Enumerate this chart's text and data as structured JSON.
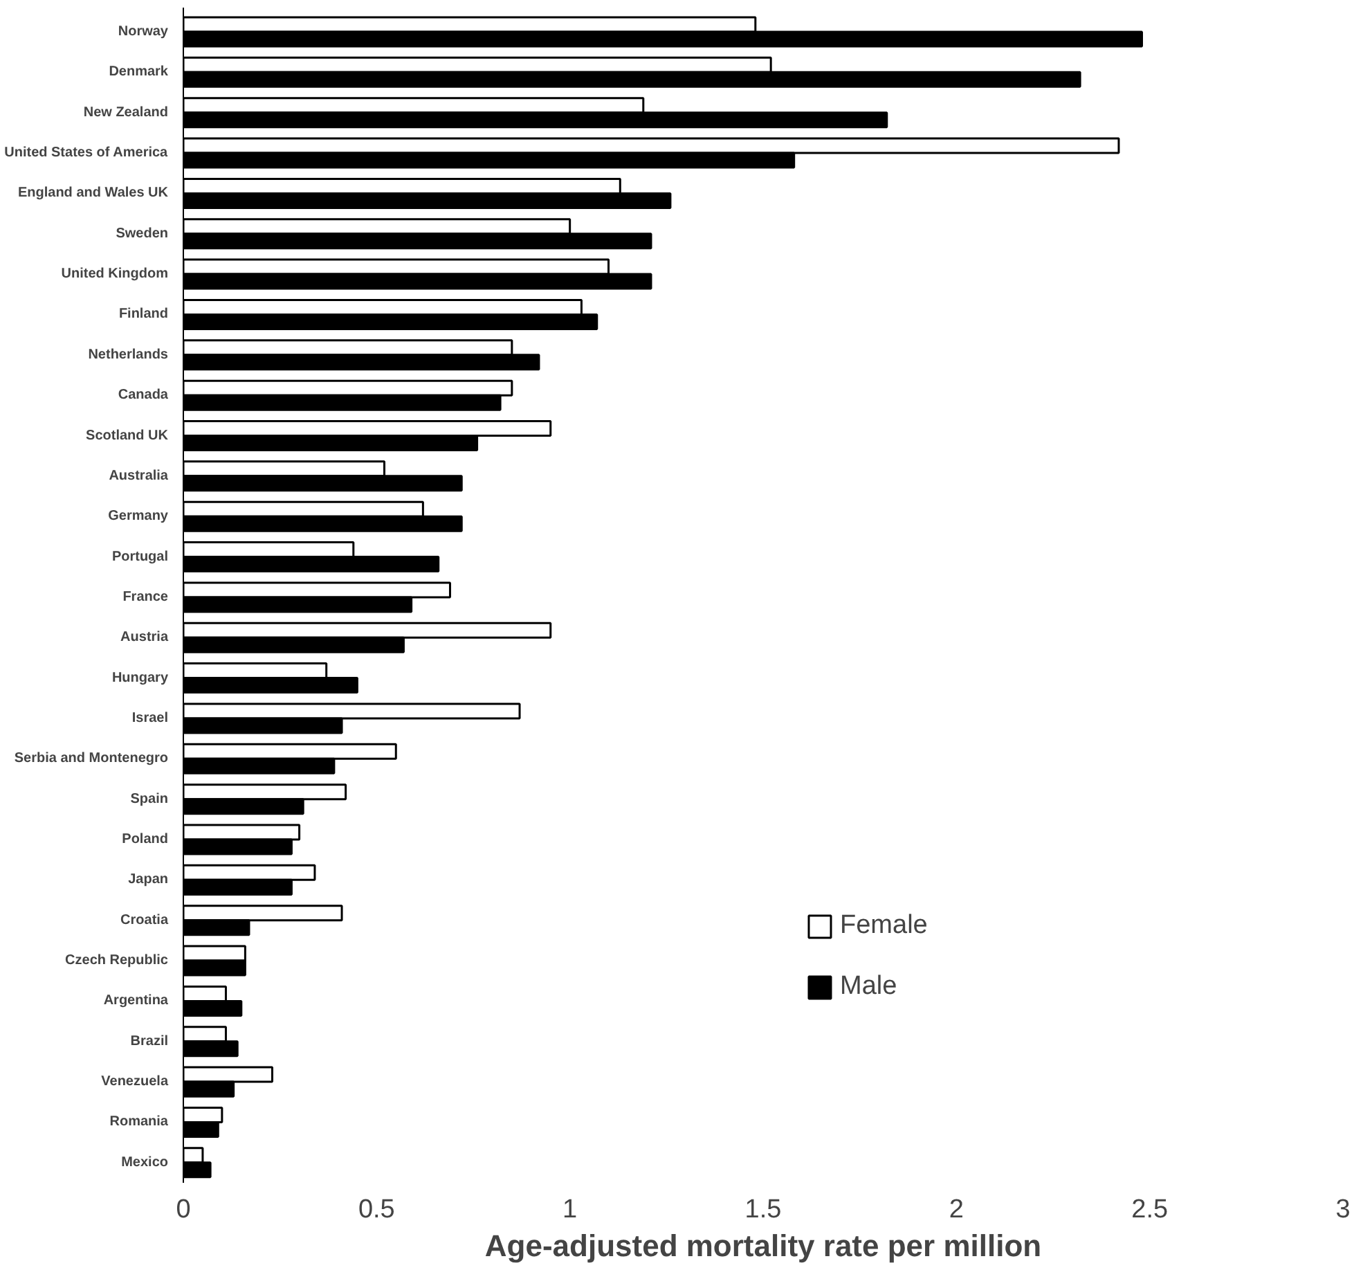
{
  "chart_data": {
    "type": "bar",
    "orientation": "horizontal",
    "xlabel": "Age-adjusted mortality rate per million",
    "categories": [
      "Norway",
      "Denmark",
      "New Zealand",
      "United States of America",
      "England and Wales UK",
      "Sweden",
      "United Kingdom",
      "Finland",
      "Netherlands",
      "Canada",
      "Scotland UK",
      "Australia",
      "Germany",
      "Portugal",
      "France",
      "Austria",
      "Hungary",
      "Israel",
      "Serbia and Montenegro",
      "Spain",
      "Poland",
      "Japan",
      "Croatia",
      "Czech Republic",
      "Argentina",
      "Brazil",
      "Venezuela",
      "Romania",
      "Mexico"
    ],
    "series": [
      {
        "name": "Female",
        "color": "#ffffff",
        "values": [
          1.48,
          1.52,
          1.19,
          2.42,
          1.13,
          1.0,
          1.1,
          1.03,
          0.85,
          0.85,
          0.95,
          0.52,
          0.62,
          0.44,
          0.69,
          0.95,
          0.37,
          0.87,
          0.55,
          0.42,
          0.3,
          0.34,
          0.41,
          0.16,
          0.11,
          0.11,
          0.23,
          0.1,
          0.05
        ]
      },
      {
        "name": "Male",
        "color": "#000000",
        "values": [
          2.48,
          2.32,
          1.82,
          1.58,
          1.26,
          1.21,
          1.21,
          1.07,
          0.92,
          0.82,
          0.76,
          0.72,
          0.72,
          0.66,
          0.59,
          0.57,
          0.45,
          0.41,
          0.39,
          0.31,
          0.28,
          0.28,
          0.17,
          0.16,
          0.15,
          0.14,
          0.13,
          0.09,
          0.07
        ]
      }
    ],
    "xlim": [
      0,
      3
    ],
    "xticks": [
      0,
      0.5,
      1,
      1.5,
      2,
      2.5,
      3
    ],
    "legend": "bottom right",
    "grid": false
  }
}
